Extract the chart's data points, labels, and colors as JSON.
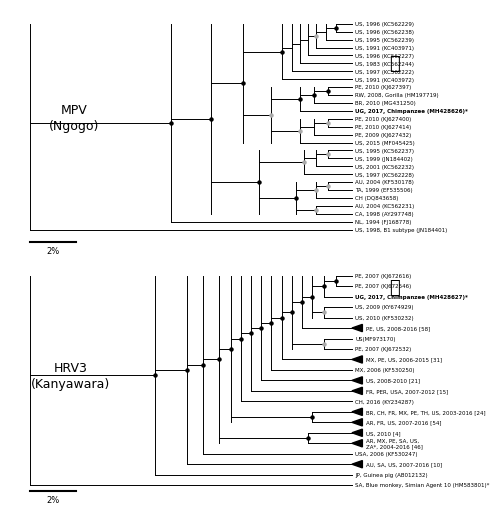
{
  "background": "#ffffff",
  "mpv_label": "MPV\n(Ngogo)",
  "hrv3_label": "HRV3\n(Kanyawara)",
  "mpv_tips": [
    {
      "label": "US, 1996 (KC562229)",
      "bold": false
    },
    {
      "label": "US, 1996 (KC562238)",
      "bold": false
    },
    {
      "label": "US, 1995 (KC562239)",
      "bold": false
    },
    {
      "label": "US, 1991 (KC403971)",
      "bold": false
    },
    {
      "label": "US, 1996 (KC562227)",
      "bold": false
    },
    {
      "label": "US, 1983 (KC562244)",
      "bold": false
    },
    {
      "label": "US, 1997 (KC562222)",
      "bold": false
    },
    {
      "label": "US, 1991 (KC403972)",
      "bold": false
    },
    {
      "label": "PE, 2010 (KJ627397)",
      "bold": false
    },
    {
      "label": "RW, 2008, Gorilla (HM197719)",
      "bold": false
    },
    {
      "label": "BR, 2010 (MG431250)",
      "bold": false
    },
    {
      "label": "UG, 2017, Chimpanzee (MH428626)*",
      "bold": true
    },
    {
      "label": "PE, 2010 (KJ627400)",
      "bold": false
    },
    {
      "label": "PE, 2010 (KJ627414)",
      "bold": false
    },
    {
      "label": "PE, 2009 (KJ627432)",
      "bold": false
    },
    {
      "label": "US, 2015 (MF045425)",
      "bold": false
    },
    {
      "label": "US, 1995 (KC562237)",
      "bold": false
    },
    {
      "label": "US, 1999 (JN184402)",
      "bold": false
    },
    {
      "label": "US, 2001 (KC562232)",
      "bold": false
    },
    {
      "label": "US, 1997 (KC562228)",
      "bold": false
    },
    {
      "label": "AU, 2004 (KF530178)",
      "bold": false
    },
    {
      "label": "TA, 1999 (EF535506)",
      "bold": false
    },
    {
      "label": "CH (DQ843658)",
      "bold": false
    },
    {
      "label": "AU, 2004 (KC562231)",
      "bold": false
    },
    {
      "label": "CA, 1998 (AY297748)",
      "bold": false
    },
    {
      "label": "NL, 1994 (FJ168778)",
      "bold": false
    },
    {
      "label": "US, 1998, B1 subtype (JN184401)",
      "bold": false
    }
  ],
  "hrv3_tips": [
    {
      "label": "PE, 2007 (KJ672616)",
      "bold": false,
      "collapsed": false
    },
    {
      "label": "PE, 2007 (KJ672546)",
      "bold": false,
      "collapsed": false
    },
    {
      "label": "UG, 2017, Chimpanzee (MH428627)*",
      "bold": true,
      "collapsed": false
    },
    {
      "label": "US, 2009 (KY674929)",
      "bold": false,
      "collapsed": false
    },
    {
      "label": "US, 2010 (KF530232)",
      "bold": false,
      "collapsed": false
    },
    {
      "label": "PE, US, 2008-2016 [58]",
      "bold": false,
      "collapsed": true
    },
    {
      "label": "US(MF973170)",
      "bold": false,
      "collapsed": false
    },
    {
      "label": "PE, 2007 (KJ672532)",
      "bold": false,
      "collapsed": false
    },
    {
      "label": "MX, PE, US, 2006-2015 [31]",
      "bold": false,
      "collapsed": true
    },
    {
      "label": "MX, 2006 (KF530250)",
      "bold": false,
      "collapsed": false
    },
    {
      "label": "US, 2008-2010 [21]",
      "bold": false,
      "collapsed": true
    },
    {
      "label": "FR, PER, USA, 2007-2012 [15]",
      "bold": false,
      "collapsed": true
    },
    {
      "label": "CH, 2016 (KY234287)",
      "bold": false,
      "collapsed": false
    },
    {
      "label": "BR, CH, FR, MX, PE, TH, US, 2003-2016 [24]",
      "bold": false,
      "collapsed": true
    },
    {
      "label": "AR, FR, US, 2007-2016 [54]",
      "bold": false,
      "collapsed": true
    },
    {
      "label": "US, 2010 [4]",
      "bold": false,
      "collapsed": true
    },
    {
      "label": "AR, MX, PE, SA, US,\nZA*, 2004-2016 [46]",
      "bold": false,
      "collapsed": true
    },
    {
      "label": "USA, 2006 (KF530247)",
      "bold": false,
      "collapsed": false
    },
    {
      "label": "AU, SA, US, 2007-2016 [10]",
      "bold": false,
      "collapsed": true
    },
    {
      "label": "JP, Guinea pig (AB012132)",
      "bold": false,
      "collapsed": false
    },
    {
      "label": "SA, Blue monkey, Simian Agent 10 (HM583801)*",
      "bold": false,
      "collapsed": false
    }
  ]
}
